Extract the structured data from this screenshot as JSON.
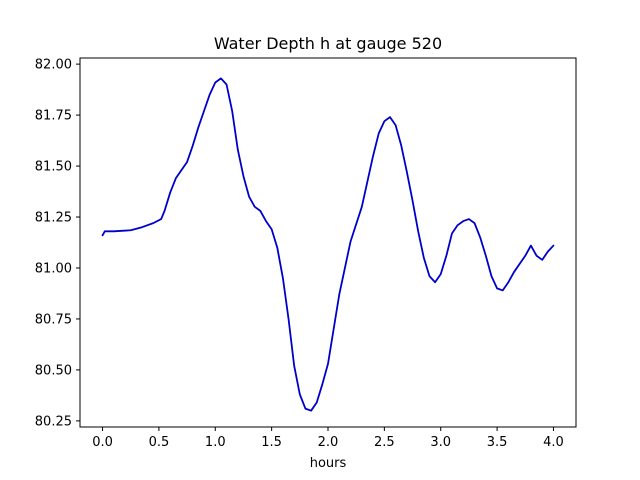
{
  "chart_data": {
    "type": "line",
    "title": "Water Depth h at gauge 520",
    "xlabel": "hours",
    "ylabel": "",
    "xlim": [
      -0.2,
      4.2
    ],
    "ylim": [
      80.22,
      82.03
    ],
    "xticks": [
      0.0,
      0.5,
      1.0,
      1.5,
      2.0,
      2.5,
      3.0,
      3.5,
      4.0
    ],
    "xtick_labels": [
      "0.0",
      "0.5",
      "1.0",
      "1.5",
      "2.0",
      "2.5",
      "3.0",
      "3.5",
      "4.0"
    ],
    "yticks": [
      80.25,
      80.5,
      80.75,
      81.0,
      81.25,
      81.5,
      81.75,
      82.0
    ],
    "ytick_labels": [
      "80.25",
      "80.50",
      "80.75",
      "81.00",
      "81.25",
      "81.50",
      "81.75",
      "82.00"
    ],
    "grid": false,
    "series": [
      {
        "color": "#0000cc",
        "x": [
          0.0,
          0.02,
          0.1,
          0.25,
          0.35,
          0.45,
          0.52,
          0.55,
          0.6,
          0.65,
          0.7,
          0.75,
          0.8,
          0.85,
          0.9,
          0.95,
          1.0,
          1.05,
          1.1,
          1.15,
          1.2,
          1.25,
          1.3,
          1.35,
          1.4,
          1.45,
          1.5,
          1.55,
          1.6,
          1.65,
          1.7,
          1.75,
          1.8,
          1.85,
          1.9,
          1.95,
          2.0,
          2.05,
          2.1,
          2.15,
          2.2,
          2.3,
          2.4,
          2.45,
          2.5,
          2.55,
          2.6,
          2.65,
          2.7,
          2.75,
          2.8,
          2.85,
          2.9,
          2.95,
          3.0,
          3.05,
          3.1,
          3.15,
          3.2,
          3.25,
          3.3,
          3.35,
          3.4,
          3.45,
          3.5,
          3.55,
          3.6,
          3.65,
          3.7,
          3.75,
          3.8,
          3.85,
          3.9,
          3.95,
          4.0
        ],
        "y": [
          81.16,
          81.18,
          81.18,
          81.185,
          81.2,
          81.22,
          81.24,
          81.28,
          81.37,
          81.44,
          81.48,
          81.52,
          81.6,
          81.69,
          81.77,
          81.85,
          81.91,
          81.93,
          81.9,
          81.77,
          81.58,
          81.45,
          81.35,
          81.3,
          81.28,
          81.23,
          81.19,
          81.1,
          80.95,
          80.75,
          80.52,
          80.38,
          80.31,
          80.3,
          80.34,
          80.43,
          80.53,
          80.7,
          80.87,
          81.0,
          81.13,
          81.3,
          81.55,
          81.66,
          81.72,
          81.74,
          81.7,
          81.6,
          81.47,
          81.33,
          81.18,
          81.05,
          80.96,
          80.93,
          80.97,
          81.06,
          81.17,
          81.21,
          81.23,
          81.24,
          81.22,
          81.15,
          81.06,
          80.96,
          80.9,
          80.89,
          80.93,
          80.98,
          81.02,
          81.06,
          81.11,
          81.06,
          81.04,
          81.08,
          81.11
        ]
      }
    ]
  }
}
